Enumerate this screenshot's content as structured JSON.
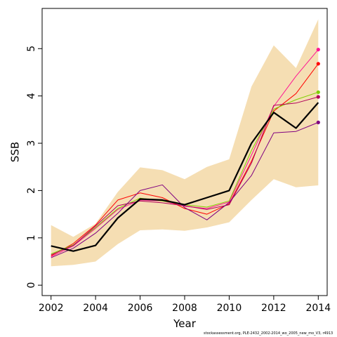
{
  "chart_data": {
    "type": "line",
    "title": "",
    "xlabel": "Year",
    "ylabel": "SSB",
    "xlim": [
      2001.6,
      2014.4
    ],
    "ylim": [
      -0.22,
      5.85
    ],
    "x_ticks": [
      2002,
      2004,
      2006,
      2008,
      2010,
      2012,
      2014
    ],
    "x_tick_labels": [
      "2002",
      "2004",
      "2006",
      "2008",
      "2010",
      "2012",
      "2014"
    ],
    "y_ticks": [
      0,
      1,
      2,
      3,
      4,
      5
    ],
    "y_tick_labels": [
      "0",
      "1",
      "2",
      "3",
      "4",
      "5"
    ],
    "grid": false,
    "legend": "none",
    "years": [
      2002,
      2003,
      2004,
      2005,
      2006,
      2007,
      2008,
      2009,
      2010,
      2011,
      2012,
      2013,
      2014
    ],
    "band": {
      "color": "#f5deb3",
      "lower": [
        0.4,
        0.43,
        0.5,
        0.87,
        1.16,
        1.18,
        1.15,
        1.22,
        1.33,
        1.8,
        2.24,
        2.07,
        2.11
      ],
      "upper": [
        1.27,
        1.02,
        1.3,
        1.97,
        2.49,
        2.43,
        2.24,
        2.5,
        2.66,
        4.2,
        5.07,
        4.59,
        5.62
      ]
    },
    "series": [
      {
        "color": "#000000",
        "width": 2.2,
        "end_point": false,
        "values": [
          0.83,
          0.72,
          0.84,
          1.42,
          1.82,
          1.8,
          1.7,
          1.85,
          2.0,
          3.0,
          3.65,
          3.32,
          3.86
        ]
      },
      {
        "color": "#ff1493",
        "width": 1,
        "end_point": true,
        "values": [
          0.6,
          0.83,
          1.2,
          1.6,
          1.8,
          1.78,
          1.67,
          1.62,
          1.76,
          2.75,
          3.78,
          4.42,
          4.98
        ]
      },
      {
        "color": "#ff0000",
        "width": 1,
        "end_point": true,
        "values": [
          0.62,
          0.88,
          1.27,
          1.8,
          1.95,
          1.85,
          1.62,
          1.5,
          1.72,
          2.62,
          3.68,
          4.05,
          4.68
        ]
      },
      {
        "color": "#7fd000",
        "width": 1,
        "end_point": true,
        "values": [
          0.66,
          0.85,
          1.22,
          1.62,
          1.84,
          1.78,
          1.7,
          1.65,
          1.78,
          2.85,
          3.72,
          3.92,
          4.08
        ]
      },
      {
        "color": "#b0005a",
        "width": 1,
        "end_point": true,
        "values": [
          0.64,
          0.84,
          1.25,
          1.68,
          1.78,
          1.74,
          1.68,
          1.6,
          1.7,
          2.58,
          3.8,
          3.85,
          3.98
        ]
      },
      {
        "color": "#800080",
        "width": 1,
        "end_point": true,
        "values": [
          0.58,
          0.78,
          1.1,
          1.52,
          2.0,
          2.12,
          1.64,
          1.38,
          1.75,
          2.32,
          3.22,
          3.25,
          3.44
        ]
      }
    ],
    "footnote": "stockassessment.org, PLE-2432_2002-2014_wo_2005_new_mo_V3, r4913"
  }
}
